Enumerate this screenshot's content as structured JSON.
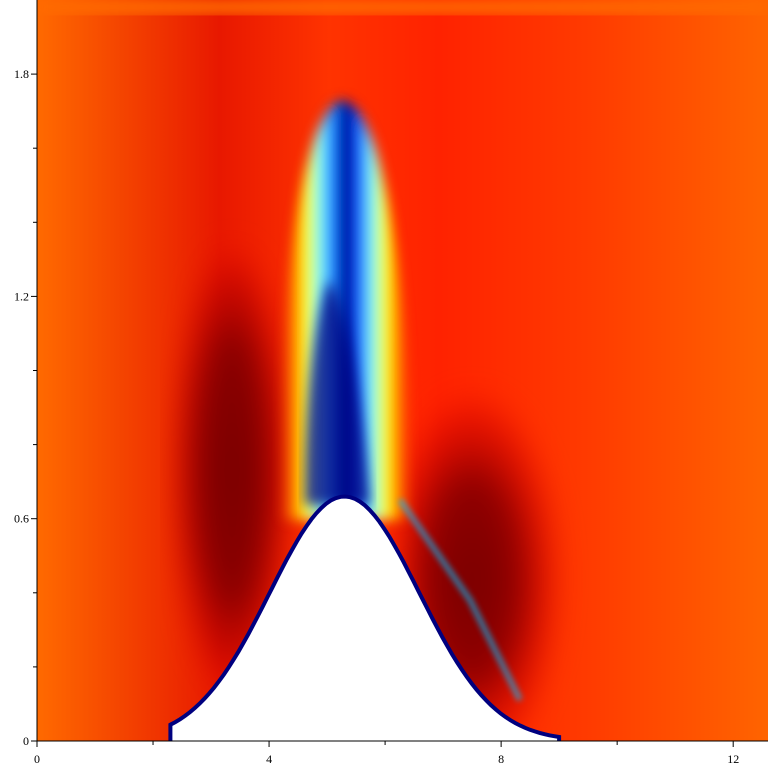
{
  "chart_data": {
    "type": "heatmap",
    "title": "",
    "xlabel": "",
    "ylabel": "",
    "xlim": [
      0,
      12.6
    ],
    "ylim": [
      0,
      2.0
    ],
    "x_ticks": [
      {
        "value": 0,
        "label": "0"
      },
      {
        "value": 4,
        "label": "4"
      },
      {
        "value": 8,
        "label": "8"
      },
      {
        "value": 12,
        "label": "12"
      }
    ],
    "x_minor_ticks": [
      2,
      6,
      10
    ],
    "y_ticks": [
      {
        "value": 0,
        "label": "0"
      },
      {
        "value": 0.6,
        "label": "0.6"
      },
      {
        "value": 1.2,
        "label": "1.2"
      },
      {
        "value": 1.8,
        "label": "1.8"
      }
    ],
    "y_minor_ticks": [
      0.2,
      0.4,
      0.8,
      1.0,
      1.4,
      1.6
    ],
    "colormap": "jet",
    "colormap_stops": [
      "#00007f",
      "#0000ff",
      "#00bfff",
      "#7fffff",
      "#ffff00",
      "#ff7f00",
      "#ff0000",
      "#7f0000"
    ],
    "obstacle": {
      "shape": "bump",
      "description_units": "data",
      "base_left": 2.3,
      "base_right": 9.0,
      "peak_x": 5.3,
      "peak_y": 0.66
    },
    "features": {
      "jet_core_x": 5.3,
      "jet_top_y": 1.72,
      "left_dark_region_x": [
        2.4,
        4.2
      ],
      "right_dark_region_x": [
        6.5,
        8.8
      ]
    }
  }
}
